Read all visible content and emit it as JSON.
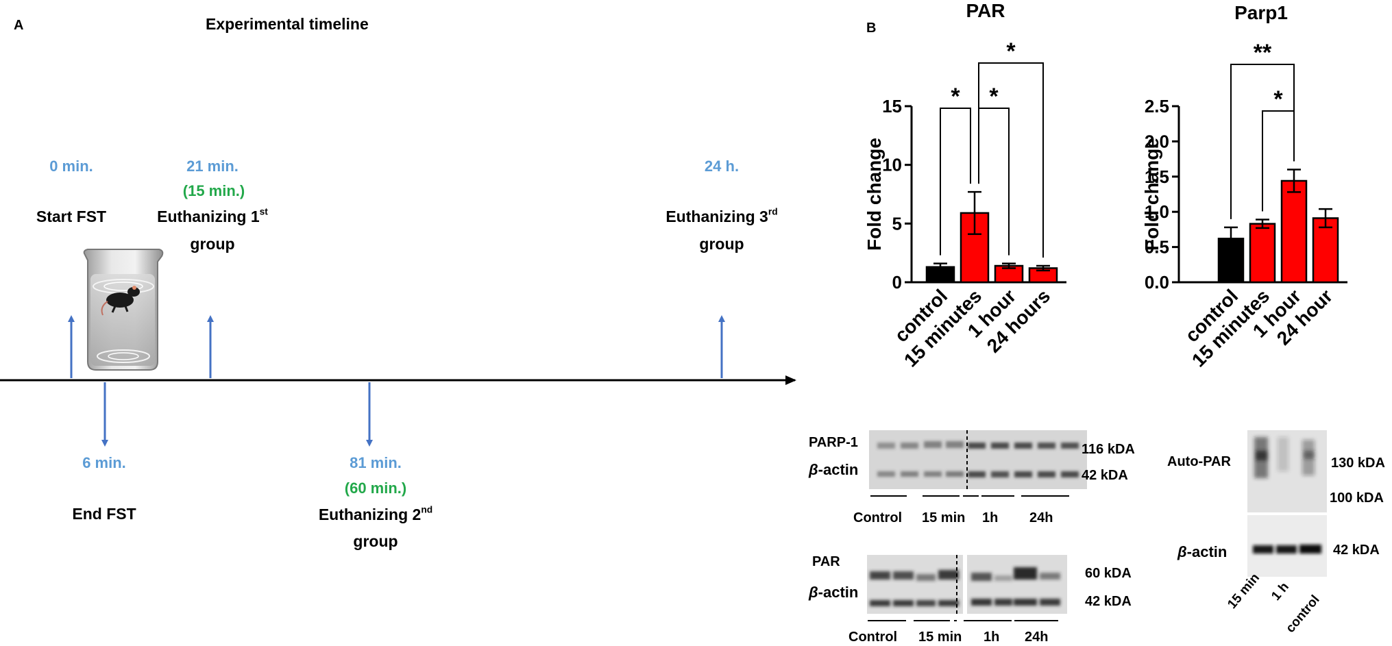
{
  "panel_a": {
    "label": "A",
    "title": "Experimental timeline",
    "events_above": [
      {
        "time": "0 min.",
        "label": "Start FST"
      },
      {
        "time": "21 min.",
        "sub": "(15 min.)",
        "label_pre": "Euthanizing 1",
        "sup": "st",
        "label_post": "group"
      },
      {
        "time": "24 h.",
        "label_pre": "Euthanizing 3",
        "sup": "rd",
        "label_post": "group"
      }
    ],
    "events_below": [
      {
        "time": "6 min.",
        "label": "End FST"
      },
      {
        "time": "81 min.",
        "sub": "(60 min.)",
        "label_pre": "Euthanizing 2",
        "sup": "nd",
        "label_post": "group"
      }
    ]
  },
  "panel_b": {
    "label": "B"
  },
  "chart_data": [
    {
      "type": "bar",
      "title": "PAR",
      "ylabel": "Fold change",
      "categories": [
        "control",
        "15 minutes",
        "1 hour",
        "24 hours"
      ],
      "values": [
        1.3,
        5.9,
        1.4,
        1.2
      ],
      "errors": [
        0.3,
        1.8,
        0.2,
        0.2
      ],
      "colors": [
        "#000000",
        "#ff0000",
        "#ff0000",
        "#ff0000"
      ],
      "ylim": [
        0,
        15
      ],
      "yticks": [
        "0",
        "5",
        "10",
        "15"
      ],
      "significance": [
        {
          "from": "control",
          "to": "15 minutes",
          "label": "*"
        },
        {
          "from": "15 minutes",
          "to": "1 hour",
          "label": "*"
        },
        {
          "from": "15 minutes",
          "to": "24 hours",
          "label": "*"
        }
      ]
    },
    {
      "type": "bar",
      "title": "Parp1",
      "ylabel": "Fold change",
      "categories": [
        "control",
        "15 minutes",
        "1 hour",
        "24 hour"
      ],
      "values": [
        0.62,
        0.83,
        1.44,
        0.91
      ],
      "errors": [
        0.16,
        0.06,
        0.16,
        0.13
      ],
      "colors": [
        "#000000",
        "#ff0000",
        "#ff0000",
        "#ff0000"
      ],
      "ylim": [
        0,
        2.5
      ],
      "yticks": [
        "0.0",
        "0.5",
        "1.0",
        "1.5",
        "2.0",
        "2.5"
      ],
      "significance": [
        {
          "from": "control",
          "to": "1 hour",
          "label": "**"
        },
        {
          "from": "15 minutes",
          "to": "1 hour",
          "label": "*"
        }
      ]
    }
  ],
  "blots": {
    "parp1_blot": {
      "row1": "PARP-1",
      "row2_beta": "β",
      "row2": "-actin",
      "kda1": "116 kDA",
      "kda2": "42 kDA",
      "groups": [
        "Control",
        "15 min",
        "1h",
        "24h"
      ]
    },
    "par_blot": {
      "row1": "PAR",
      "row2_beta": "β",
      "row2": "-actin",
      "kda1": "60 kDA",
      "kda2": "42 kDA",
      "groups": [
        "Control",
        "15 min",
        "1h",
        "24h"
      ]
    },
    "autopar_blot": {
      "row1": "Auto-PAR",
      "row2_beta": "β",
      "row2": "-actin",
      "kda1": "130 kDA",
      "kda2": "100 kDA",
      "kda3": "42 kDA",
      "lanes": [
        "15 min",
        "1 h",
        "control"
      ]
    }
  }
}
